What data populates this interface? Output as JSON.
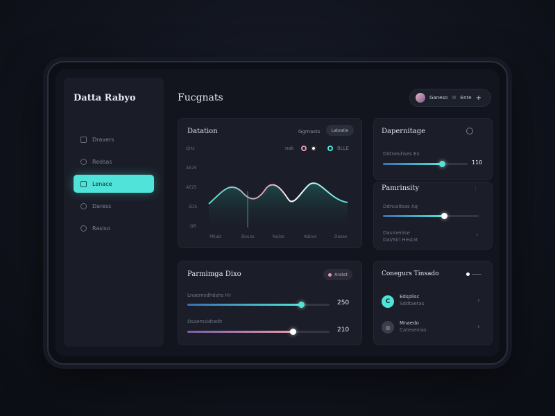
{
  "app": {
    "brand": "Datta Rabyo",
    "page_title": "Fucgnats"
  },
  "user": {
    "name": "Ganeso",
    "action": "Ente",
    "plus": "+"
  },
  "sidebar": {
    "items": [
      {
        "label": "Dravers",
        "icon": "stack-icon"
      },
      {
        "label": "Redsas",
        "icon": "people-icon"
      },
      {
        "label": "Lenace",
        "icon": "calendar-icon",
        "active": true
      },
      {
        "label": "Daress",
        "icon": "settings-icon"
      },
      {
        "label": "Rasiso",
        "icon": "gear-icon"
      }
    ]
  },
  "chart_card": {
    "title": "Datation",
    "filter_label": "Ggrnasts",
    "chip_label": "Lateatie",
    "legend_label": "nak",
    "legend_extra": "BLLE",
    "chart_data": {
      "type": "line",
      "y_ticks": [
        "Qrts",
        "AE25",
        "AE25",
        "EDS",
        "QR"
      ],
      "x_ticks": [
        "Mkuls",
        "Bouns",
        "Nulos",
        "Adovs",
        "Dases"
      ]
    }
  },
  "card_a": {
    "title": "Dapernitage",
    "slider_label": "Ddtneuhses Ex",
    "slider_value": "110",
    "slider_fraction": 0.7
  },
  "card_b": {
    "title": "Pamrinsity",
    "slider_label": "Ddnusitsas Aq",
    "slider_fraction": 0.64,
    "foot_line1": "Dasmenise",
    "foot_line2": "Dal/Siri Hestat"
  },
  "card_c": {
    "title": "Parmimga Dixo",
    "chip_label": "Aratet",
    "slider1_label": "Lnaemsdhdshs Hr",
    "slider1_value": "250",
    "slider1_fraction": 0.8,
    "slider2_label": "Dsaemsidtedh",
    "slider2_value": "210",
    "slider2_fraction": 0.74
  },
  "card_d": {
    "title": "Conegurs Tinsado",
    "rows": [
      {
        "title": "Edsplisc",
        "subtitle": "Sddtaetas",
        "icon": "teal-badge-icon"
      },
      {
        "title": "Mnaedo",
        "subtitle": "Catesenlas",
        "icon": "grey-badge-icon"
      }
    ]
  },
  "colors": {
    "accent": "#4fe3d9",
    "pink": "#e99aaf"
  }
}
